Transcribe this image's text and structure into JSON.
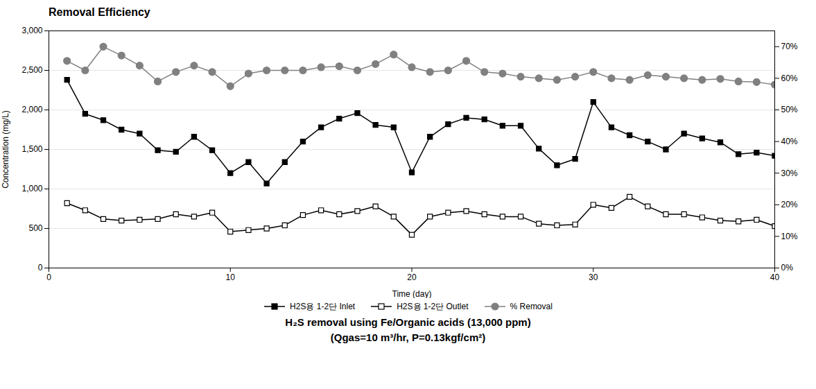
{
  "chart_data": {
    "type": "line",
    "title": "Removal Efficiency",
    "subtitle": [
      "H₂S removal using Fe/Organic acids (13,000 ppm)",
      "(Qgas=10 m³/hr, P=0.13kgf/cm²)"
    ],
    "xlabel": "Time (day)",
    "ylabel": "Concentration (mg/L)",
    "x": [
      1,
      2,
      3,
      4,
      5,
      6,
      7,
      8,
      9,
      10,
      11,
      12,
      13,
      14,
      15,
      16,
      17,
      18,
      19,
      20,
      21,
      22,
      23,
      24,
      25,
      26,
      27,
      28,
      29,
      30,
      31,
      32,
      33,
      34,
      35,
      36,
      37,
      38,
      39,
      40
    ],
    "series": [
      {
        "name": "H2S용 1-2단 Inlet",
        "color": "#000000",
        "marker": "square",
        "values": [
          2380,
          1950,
          1870,
          1750,
          1700,
          1490,
          1470,
          1660,
          1490,
          1200,
          1340,
          1070,
          1340,
          1600,
          1780,
          1890,
          1960,
          1810,
          1780,
          1210,
          1660,
          1820,
          1900,
          1880,
          1800,
          1800,
          1510,
          1300,
          1380,
          2100,
          1780,
          1680,
          1600,
          1500,
          1700,
          1640,
          1590,
          1440,
          1460,
          1420
        ]
      },
      {
        "name": "H2S용 1-2단 Outlet",
        "color": "#000000",
        "marker": "square-open",
        "values": [
          820,
          730,
          620,
          600,
          610,
          620,
          680,
          650,
          700,
          460,
          480,
          500,
          540,
          670,
          730,
          680,
          720,
          780,
          650,
          420,
          650,
          700,
          720,
          680,
          650,
          650,
          560,
          540,
          550,
          800,
          760,
          900,
          780,
          680,
          680,
          640,
          600,
          590,
          610,
          530
        ]
      },
      {
        "name": "% Removal",
        "color": "#808080",
        "marker": "circle",
        "axis": "y2",
        "values": [
          0.655,
          0.625,
          0.7,
          0.672,
          0.64,
          0.59,
          0.62,
          0.64,
          0.62,
          0.575,
          0.615,
          0.625,
          0.625,
          0.625,
          0.635,
          0.638,
          0.625,
          0.645,
          0.675,
          0.635,
          0.62,
          0.625,
          0.655,
          0.62,
          0.615,
          0.605,
          0.6,
          0.595,
          0.605,
          0.62,
          0.6,
          0.595,
          0.61,
          0.605,
          0.6,
          0.595,
          0.598,
          0.59,
          0.588,
          0.58
        ]
      }
    ],
    "xlim": [
      0,
      40
    ],
    "xticks": [
      0,
      10,
      20,
      30,
      40
    ],
    "ylim": [
      0,
      3000
    ],
    "yticks": [
      0,
      500,
      {
        "value": 1000,
        "label": "1,000"
      },
      {
        "value": 1500,
        "label": "1,500"
      },
      {
        "value": 2000,
        "label": "2,000"
      },
      {
        "value": 2500,
        "label": "2,500"
      },
      {
        "value": 3000,
        "label": "3,000"
      }
    ],
    "y2lim": [
      0,
      0.75
    ],
    "y2ticks": [
      {
        "value": 0,
        "label": "0%"
      },
      {
        "value": 0.1,
        "label": "10%"
      },
      {
        "value": 0.2,
        "label": "20%"
      },
      {
        "value": 0.3,
        "label": "30%"
      },
      {
        "value": 0.4,
        "label": "40%"
      },
      {
        "value": 0.5,
        "label": "50%"
      },
      {
        "value": 0.6,
        "label": "60%"
      },
      {
        "value": 0.7,
        "label": "70%"
      }
    ],
    "grid": true,
    "legend": "bottom"
  }
}
